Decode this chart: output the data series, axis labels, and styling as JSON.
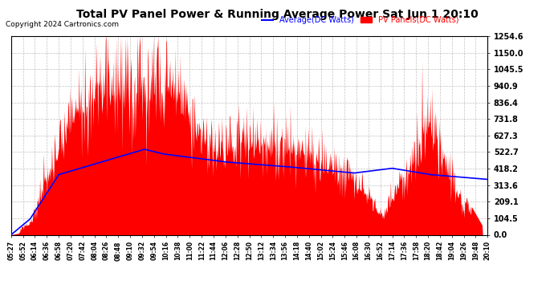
{
  "title": "Total PV Panel Power & Running Average Power Sat Jun 1 20:10",
  "copyright": "Copyright 2024 Cartronics.com",
  "legend_avg": "Average(DC Watts)",
  "legend_pv": "PV Panels(DC Watts)",
  "y_max": 1254.6,
  "y_min": 0.0,
  "y_ticks": [
    0.0,
    104.5,
    209.1,
    313.6,
    418.2,
    522.7,
    627.3,
    731.8,
    836.4,
    940.9,
    1045.5,
    1150.0,
    1254.6
  ],
  "pv_color": "#FF0000",
  "avg_color": "#0000FF",
  "bg_color": "#FFFFFF",
  "grid_color": "#999999",
  "title_color": "#000000",
  "copyright_color": "#000000",
  "legend_avg_color": "#0000FF",
  "legend_pv_color": "#FF0000",
  "x_labels": [
    "05:27",
    "05:52",
    "06:14",
    "06:36",
    "06:58",
    "07:20",
    "07:42",
    "08:04",
    "08:26",
    "08:48",
    "09:10",
    "09:32",
    "09:54",
    "10:16",
    "10:38",
    "11:00",
    "11:22",
    "11:44",
    "12:06",
    "12:28",
    "12:50",
    "13:12",
    "13:34",
    "13:56",
    "14:18",
    "14:40",
    "15:02",
    "15:24",
    "15:46",
    "16:08",
    "16:30",
    "16:52",
    "17:14",
    "17:36",
    "17:58",
    "18:20",
    "18:42",
    "19:04",
    "19:26",
    "19:48",
    "20:10"
  ]
}
